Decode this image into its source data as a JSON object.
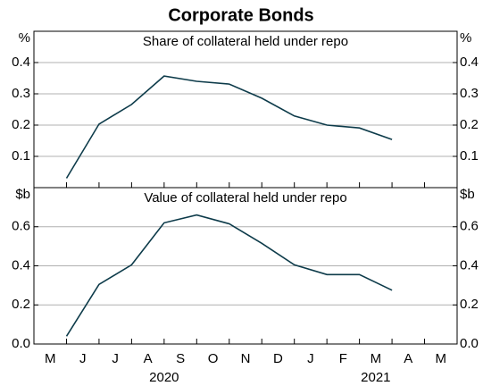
{
  "chart_data": {
    "type": "line",
    "title": "Corporate Bonds",
    "categories": [
      "M",
      "J",
      "J",
      "A",
      "S",
      "O",
      "N",
      "D",
      "J",
      "F",
      "M",
      "A",
      "M"
    ],
    "year_labels": [
      "2020",
      "2021"
    ],
    "grid": true,
    "panels": [
      {
        "subtitle": "Share of collateral held under repo",
        "unit": "%",
        "ylim": [
          0,
          0.5
        ],
        "yticks": [
          0.1,
          0.2,
          0.3,
          0.4
        ],
        "series": [
          {
            "color": "#0d3b4a",
            "values": [
              0.03,
              0.203,
              0.266,
              0.357,
              0.34,
              0.331,
              0.286,
              0.229,
              0.2,
              0.191,
              0.154,
              null,
              null
            ]
          }
        ]
      },
      {
        "subtitle": "Value of collateral held under repo",
        "unit": "$b",
        "ylim": [
          0,
          0.8
        ],
        "yticks": [
          {
            "value": 0,
            "label": "0.0"
          },
          0.2,
          0.4,
          0.6
        ],
        "series": [
          {
            "color": "#0d3b4a",
            "values": [
              0.04,
              0.305,
              0.405,
              0.62,
              0.66,
              0.615,
              0.515,
              0.405,
              0.355,
              0.355,
              0.275,
              null,
              null
            ]
          }
        ]
      }
    ]
  }
}
